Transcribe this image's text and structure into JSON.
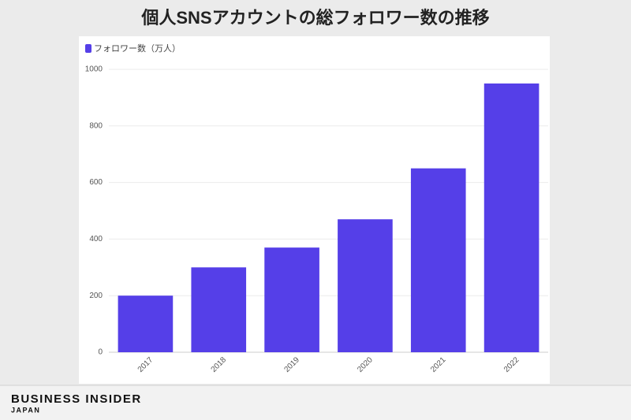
{
  "chart_data": {
    "type": "bar",
    "title": "個人SNSアカウントの総フォロワー数の推移",
    "categories": [
      "2017",
      "2018",
      "2019",
      "2020",
      "2021",
      "2022"
    ],
    "series": [
      {
        "name": "フォロワー数（万人）",
        "color": "#553fe8",
        "values": [
          200,
          300,
          370,
          470,
          650,
          950
        ]
      }
    ],
    "ylim": [
      0,
      1000
    ],
    "yticks": [
      0,
      200,
      400,
      600,
      800,
      1000
    ],
    "grid": true,
    "legend": "top-left"
  },
  "footer": {
    "brand": "BUSINESS INSIDER",
    "region": "JAPAN"
  }
}
